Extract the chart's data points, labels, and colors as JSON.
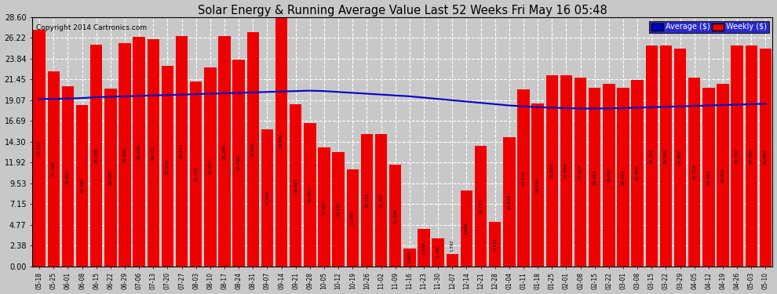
{
  "title": "Solar Energy & Running Average Value Last 52 Weeks Fri May 16 05:48",
  "copyright": "Copyright 2014 Cartronics.com",
  "bar_color": "#EE0000",
  "avg_line_color": "#0000CC",
  "background_color": "#C8C8C8",
  "plot_bg_color": "#C8C8C8",
  "grid_color": "#FFFFFF",
  "ylim": [
    0.0,
    28.6
  ],
  "yticks": [
    0.0,
    2.38,
    4.77,
    7.15,
    9.53,
    11.92,
    14.3,
    16.69,
    19.07,
    21.45,
    23.84,
    26.22,
    28.6
  ],
  "labels": [
    "05-18",
    "05-25",
    "06-01",
    "06-08",
    "06-15",
    "06-22",
    "06-29",
    "07-06",
    "07-13",
    "07-20",
    "07-27",
    "08-03",
    "08-10",
    "08-17",
    "08-24",
    "08-31",
    "09-07",
    "09-14",
    "09-21",
    "09-28",
    "10-05",
    "10-12",
    "10-19",
    "10-26",
    "11-02",
    "11-09",
    "11-16",
    "11-23",
    "11-30",
    "12-07",
    "12-14",
    "12-21",
    "12-28",
    "01-04",
    "01-11",
    "01-18",
    "01-25",
    "02-01",
    "02-08",
    "02-15",
    "02-22",
    "03-01",
    "03-08",
    "03-15",
    "03-22",
    "03-29",
    "04-05",
    "04-12",
    "04-19",
    "04-26",
    "05-03",
    "05-10"
  ],
  "values": [
    27.127,
    22.396,
    20.62,
    18.48,
    25.398,
    20.355,
    25.6,
    26.342,
    26.053,
    22.955,
    26.417,
    21.192,
    22.827,
    26.395,
    23.76,
    26.895,
    15.685,
    28.802,
    18.607,
    16.453,
    13.607,
    13.125,
    11.089,
    15.134,
    15.207,
    11.636,
    2.043,
    4.248,
    3.23,
    1.392,
    8.686,
    13.774,
    5.134,
    14.839,
    20.27,
    18.64,
    21.936,
    21.936,
    21.624,
    20.453,
    20.916,
    20.454,
    21.404,
    25.293,
    25.306,
    24.984,
    21.624,
    20.453,
    20.916,
    25.293,
    25.306,
    24.984
  ],
  "avg_values": [
    19.2,
    19.2,
    19.25,
    19.3,
    19.4,
    19.45,
    19.5,
    19.55,
    19.6,
    19.65,
    19.7,
    19.75,
    19.8,
    19.85,
    19.9,
    19.95,
    20.0,
    20.05,
    20.1,
    20.15,
    20.1,
    20.0,
    19.9,
    19.8,
    19.7,
    19.6,
    19.5,
    19.35,
    19.2,
    19.05,
    18.9,
    18.75,
    18.6,
    18.45,
    18.35,
    18.25,
    18.2,
    18.15,
    18.1,
    18.1,
    18.12,
    18.15,
    18.2,
    18.25,
    18.3,
    18.35,
    18.4,
    18.45,
    18.5,
    18.55,
    18.6,
    18.65
  ],
  "legend_avg_bg": "#0000CC",
  "legend_weekly_bg": "#EE0000"
}
